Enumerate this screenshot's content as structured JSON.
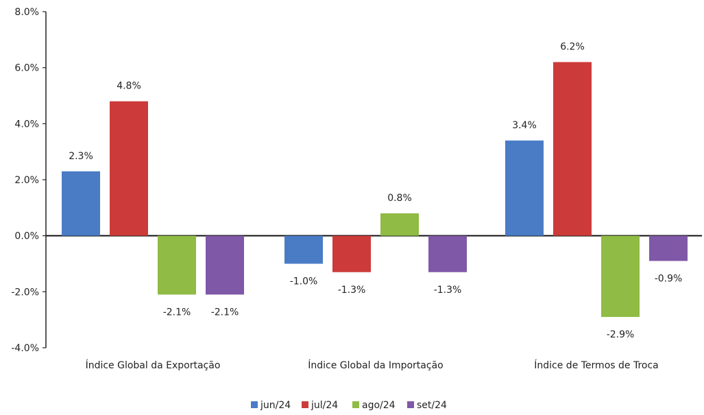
{
  "chart_data": {
    "type": "bar",
    "title": "",
    "xlabel": "",
    "ylabel": "",
    "categories": [
      "Índice Global da Exportação",
      "Índice Global da Importação",
      "Índice de Termos de Troca"
    ],
    "ylim": [
      -4,
      8
    ],
    "yticks": [
      -4,
      -2,
      0,
      2,
      4,
      6,
      8
    ],
    "ytick_labels": [
      "-4.0%",
      "-2.0%",
      "0.0%",
      "2.0%",
      "4.0%",
      "6.0%",
      "8.0%"
    ],
    "value_suffix": "%",
    "series": [
      {
        "name": "jun/24",
        "color": "#4a7cc6",
        "values": [
          2.3,
          -1.0,
          3.4
        ],
        "labels": [
          "2.3%",
          "-1.0%",
          "3.4%"
        ]
      },
      {
        "name": "jul/24",
        "color": "#cc3b3a",
        "values": [
          4.8,
          -1.3,
          6.2
        ],
        "labels": [
          "4.8%",
          "-1.3%",
          "6.2%"
        ]
      },
      {
        "name": "ago/24",
        "color": "#90bb44",
        "values": [
          -2.1,
          0.8,
          -2.9
        ],
        "labels": [
          "-2.1%",
          "0.8%",
          "-2.9%"
        ]
      },
      {
        "name": "set/24",
        "color": "#7f58a8",
        "values": [
          -2.1,
          -1.3,
          -0.9
        ],
        "labels": [
          "-2.1%",
          "-1.3%",
          "-0.9%"
        ]
      }
    ],
    "grid": false,
    "legend_position": "bottom"
  }
}
